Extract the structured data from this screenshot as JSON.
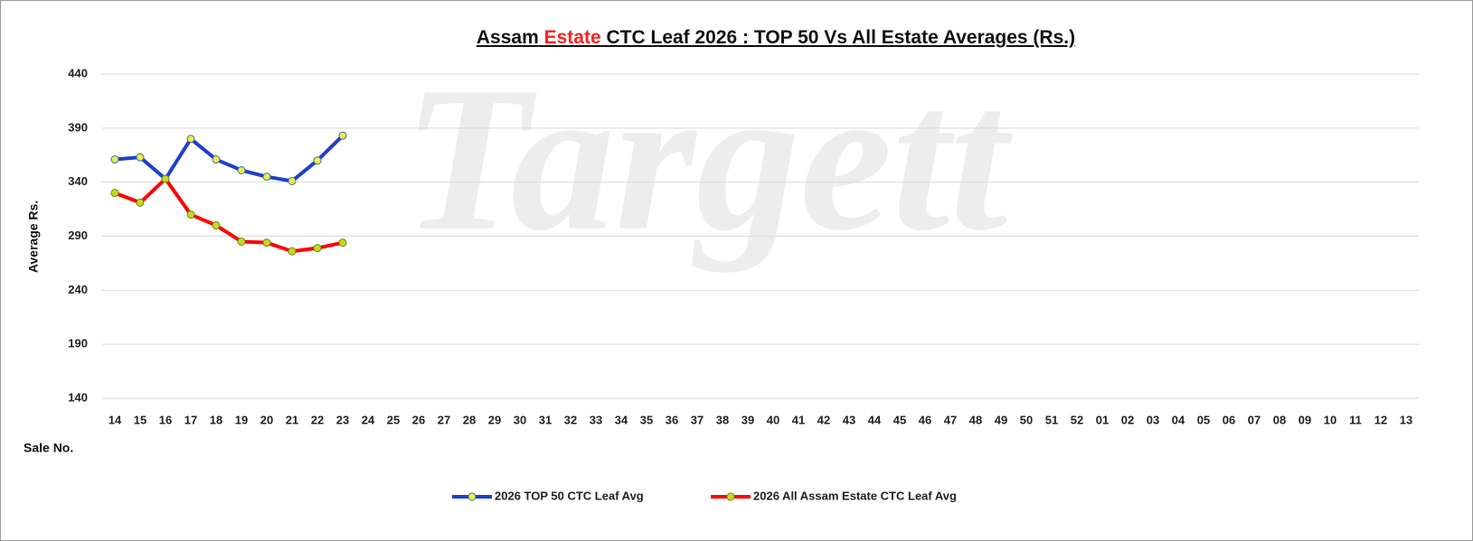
{
  "chart_data": {
    "type": "line",
    "title_parts": [
      "Assam",
      "Estate",
      "CTC Leaf 2026 : TOP 50 Vs All Estate Averages (Rs.)"
    ],
    "title_highlight_color": "#ff2020",
    "watermark": "Targett",
    "y_label": "Average Rs.",
    "x_label": "Sale No.",
    "categories": [
      "14",
      "15",
      "16",
      "17",
      "18",
      "19",
      "20",
      "21",
      "22",
      "23",
      "24",
      "25",
      "26",
      "27",
      "28",
      "29",
      "30",
      "31",
      "32",
      "33",
      "34",
      "35",
      "36",
      "37",
      "38",
      "39",
      "40",
      "41",
      "42",
      "43",
      "44",
      "45",
      "46",
      "47",
      "48",
      "49",
      "50",
      "51",
      "52",
      "01",
      "02",
      "03",
      "04",
      "05",
      "06",
      "07",
      "08",
      "09",
      "10",
      "11",
      "12",
      "13"
    ],
    "series": [
      {
        "name": "2026 TOP 50 CTC Leaf Avg",
        "color": "#1f3fcc",
        "marker_color": "#f0ee40",
        "values": [
          361,
          363,
          343,
          380,
          361,
          351,
          345,
          341,
          360,
          383,
          null,
          null,
          null,
          null,
          null,
          null,
          null,
          null,
          null,
          null,
          null,
          null,
          null,
          null,
          null,
          null,
          null,
          null,
          null,
          null,
          null,
          null,
          null,
          null,
          null,
          null,
          null,
          null,
          null,
          null,
          null,
          null,
          null,
          null,
          null,
          null,
          null,
          null,
          null,
          null,
          null,
          null
        ]
      },
      {
        "name": "2026 All Assam Estate CTC Leaf Avg",
        "color": "#ff0000",
        "marker_color": "#c8d820",
        "values": [
          330,
          321,
          343,
          310,
          300,
          285,
          284,
          276,
          279,
          284,
          null,
          null,
          null,
          null,
          null,
          null,
          null,
          null,
          null,
          null,
          null,
          null,
          null,
          null,
          null,
          null,
          null,
          null,
          null,
          null,
          null,
          null,
          null,
          null,
          null,
          null,
          null,
          null,
          null,
          null,
          null,
          null,
          null,
          null,
          null,
          null,
          null,
          null,
          null,
          null,
          null,
          null
        ]
      }
    ],
    "ylim": [
      140,
      440
    ],
    "yticks": [
      140,
      190,
      240,
      290,
      340,
      390,
      440
    ],
    "grid": true,
    "legend": "bottom"
  }
}
